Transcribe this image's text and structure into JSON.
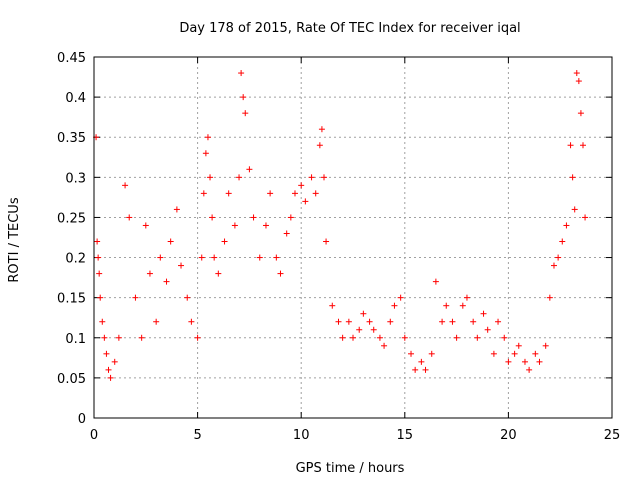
{
  "chart_data": {
    "type": "scatter",
    "title": "Day 178 of 2015, Rate Of TEC Index for receiver iqal",
    "xlabel": "GPS time / hours",
    "ylabel": "ROTI / TECUs",
    "xlim": [
      0,
      25
    ],
    "ylim": [
      0,
      0.45
    ],
    "xticks": [
      "0",
      "5",
      "10",
      "15",
      "20",
      "25"
    ],
    "yticks": [
      "0",
      "0.05",
      "0.1",
      "0.15",
      "0.2",
      "0.25",
      "0.3",
      "0.35",
      "0.4",
      "0.45"
    ],
    "grid": true,
    "marker": "+",
    "color": "#ff0000",
    "series": [
      {
        "x": [
          0.1,
          0.15,
          0.2,
          0.25,
          0.3,
          0.4,
          0.5,
          0.6,
          0.7,
          0.8,
          1.0,
          1.2,
          1.5,
          1.7,
          2.0,
          2.3,
          2.5,
          2.7,
          3.0,
          3.2,
          3.5,
          3.7,
          4.0,
          4.2,
          4.5,
          4.7,
          5.0,
          5.2,
          5.3,
          5.4,
          5.5,
          5.6,
          5.7,
          5.8,
          6.0,
          6.3,
          6.5,
          6.8,
          7.0,
          7.1,
          7.2,
          7.3,
          7.5,
          7.7,
          8.0,
          8.3,
          8.5,
          8.8,
          9.0,
          9.3,
          9.5,
          9.7,
          10.0,
          10.2,
          10.5,
          10.7,
          10.9,
          11.0,
          11.1,
          11.2,
          11.5,
          11.8,
          12.0,
          12.3,
          12.5,
          12.8,
          13.0,
          13.3,
          13.5,
          13.8,
          14.0,
          14.3,
          14.5,
          14.8,
          15.0,
          15.3,
          15.5,
          15.8,
          16.0,
          16.3,
          16.5,
          16.8,
          17.0,
          17.3,
          17.5,
          17.8,
          18.0,
          18.3,
          18.5,
          18.8,
          19.0,
          19.3,
          19.5,
          19.8,
          20.0,
          20.3,
          20.5,
          20.8,
          21.0,
          21.3,
          21.5,
          21.8,
          22.0,
          22.2,
          22.4,
          22.6,
          22.8,
          23.0,
          23.1,
          23.2,
          23.3,
          23.4,
          23.5,
          23.6,
          23.7
        ],
        "y": [
          0.35,
          0.22,
          0.2,
          0.18,
          0.15,
          0.12,
          0.1,
          0.08,
          0.06,
          0.05,
          0.07,
          0.1,
          0.29,
          0.25,
          0.15,
          0.1,
          0.24,
          0.18,
          0.12,
          0.2,
          0.17,
          0.22,
          0.26,
          0.19,
          0.15,
          0.12,
          0.1,
          0.2,
          0.28,
          0.33,
          0.35,
          0.3,
          0.25,
          0.2,
          0.18,
          0.22,
          0.28,
          0.24,
          0.3,
          0.43,
          0.4,
          0.38,
          0.31,
          0.25,
          0.2,
          0.24,
          0.28,
          0.2,
          0.18,
          0.23,
          0.25,
          0.28,
          0.29,
          0.27,
          0.3,
          0.28,
          0.34,
          0.36,
          0.3,
          0.22,
          0.14,
          0.12,
          0.1,
          0.12,
          0.1,
          0.11,
          0.13,
          0.12,
          0.11,
          0.1,
          0.09,
          0.12,
          0.14,
          0.15,
          0.1,
          0.08,
          0.06,
          0.07,
          0.06,
          0.08,
          0.17,
          0.12,
          0.14,
          0.12,
          0.1,
          0.14,
          0.15,
          0.12,
          0.1,
          0.13,
          0.11,
          0.08,
          0.12,
          0.1,
          0.07,
          0.08,
          0.09,
          0.07,
          0.06,
          0.08,
          0.07,
          0.09,
          0.15,
          0.19,
          0.2,
          0.22,
          0.24,
          0.34,
          0.3,
          0.26,
          0.43,
          0.42,
          0.38,
          0.34,
          0.25
        ]
      }
    ]
  }
}
